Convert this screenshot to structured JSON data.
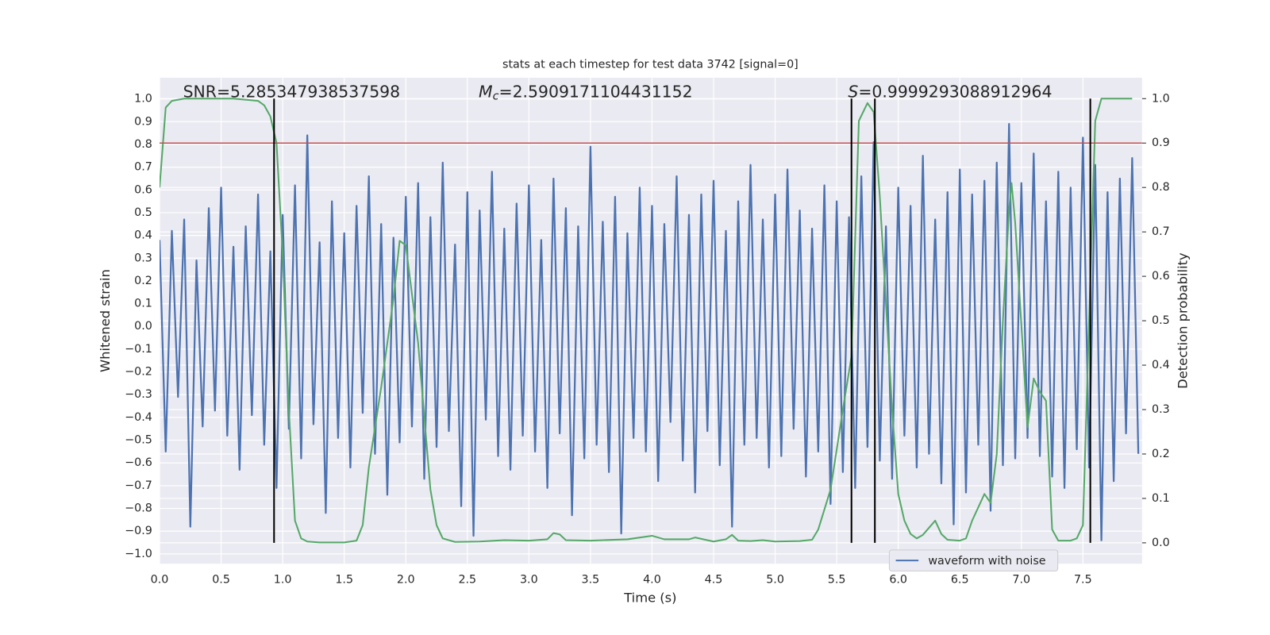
{
  "chart_data": {
    "type": "line",
    "title": "stats at each timestep for test data 3742 [signal=0]",
    "xlabel": "Time (s)",
    "ylabel": "Whitened strain",
    "y2label": "Detection probability",
    "xlim": [
      0,
      7.98
    ],
    "ylim": [
      -1.043,
      1.093
    ],
    "y2lim": [
      -0.047,
      1.047
    ],
    "xticks": [
      {
        "value": 0,
        "label": "0.0"
      },
      0.5,
      {
        "value": 1,
        "label": "1.0"
      },
      1.5,
      {
        "value": 2,
        "label": "2.0"
      },
      2.5,
      {
        "value": 3,
        "label": "3.0"
      },
      3.5,
      {
        "value": 4,
        "label": "4.0"
      },
      4.5,
      {
        "value": 5,
        "label": "5.0"
      },
      5.5,
      {
        "value": 6,
        "label": "6.0"
      },
      6.5,
      {
        "value": 7,
        "label": "7.0"
      },
      7.5
    ],
    "yticks": [
      {
        "value": 1,
        "label": "1.0"
      },
      0.9,
      0.8,
      0.7,
      0.6,
      0.5,
      0.4,
      0.3,
      0.2,
      0.1,
      {
        "value": 0,
        "label": "0.0"
      },
      {
        "value": -0.1,
        "label": "−0.1"
      },
      {
        "value": -0.2,
        "label": "−0.2"
      },
      {
        "value": -0.3,
        "label": "−0.3"
      },
      {
        "value": -0.4,
        "label": "−0.4"
      },
      {
        "value": -0.5,
        "label": "−0.5"
      },
      {
        "value": -0.6,
        "label": "−0.6"
      },
      {
        "value": -0.7,
        "label": "−0.7"
      },
      {
        "value": -0.8,
        "label": "−0.8"
      },
      {
        "value": -0.9,
        "label": "−0.9"
      },
      {
        "value": -1,
        "label": "−1.0"
      }
    ],
    "y2ticks": [
      {
        "value": 0,
        "label": "0.0"
      },
      0.1,
      0.2,
      0.3,
      0.4,
      0.5,
      0.6,
      0.7,
      0.8,
      0.9,
      {
        "value": 1,
        "label": "1.0"
      }
    ],
    "grid": true,
    "legend": "lower right",
    "annotations": [
      {
        "text": "SNR=5.285347938537598"
      },
      {
        "symbol": "M",
        "subscript": "c",
        "text": "=2.5909171104431152"
      },
      {
        "symbol": "S",
        "text": "=0.9999293088912964"
      }
    ],
    "threshold": {
      "value": 0.9,
      "axis": "y2",
      "color": "#c44e52"
    },
    "vlines": {
      "x": [
        0.93,
        5.62,
        5.81,
        7.56
      ],
      "y2range": [
        0,
        1
      ],
      "color": "#000000"
    },
    "series": [
      {
        "name": "waveform with noise",
        "color": "#4c72b0",
        "x": [
          0,
          0.05,
          0.1,
          0.15,
          0.2,
          0.25,
          0.3,
          0.35,
          0.4,
          0.45,
          0.5,
          0.55,
          0.6,
          0.65,
          0.7,
          0.75,
          0.8,
          0.85,
          0.9,
          0.95,
          1,
          1.05,
          1.1,
          1.15,
          1.2,
          1.25,
          1.3,
          1.35,
          1.4,
          1.45,
          1.5,
          1.55,
          1.6,
          1.65,
          1.7,
          1.75,
          1.8,
          1.85,
          1.9,
          1.95,
          2,
          2.05,
          2.1,
          2.15,
          2.2,
          2.25,
          2.3,
          2.35,
          2.4,
          2.45,
          2.5,
          2.55,
          2.6,
          2.65,
          2.7,
          2.75,
          2.8,
          2.85,
          2.9,
          2.95,
          3,
          3.05,
          3.1,
          3.15,
          3.2,
          3.25,
          3.3,
          3.35,
          3.4,
          3.45,
          3.5,
          3.55,
          3.6,
          3.65,
          3.7,
          3.75,
          3.8,
          3.85,
          3.9,
          3.95,
          4,
          4.05,
          4.1,
          4.15,
          4.2,
          4.25,
          4.3,
          4.35,
          4.4,
          4.45,
          4.5,
          4.55,
          4.6,
          4.65,
          4.7,
          4.75,
          4.8,
          4.85,
          4.9,
          4.95,
          5,
          5.05,
          5.1,
          5.15,
          5.2,
          5.25,
          5.3,
          5.35,
          5.4,
          5.45,
          5.5,
          5.55,
          5.6,
          5.65,
          5.7,
          5.75,
          5.8,
          5.85,
          5.9,
          5.95,
          6,
          6.05,
          6.1,
          6.15,
          6.2,
          6.25,
          6.3,
          6.35,
          6.4,
          6.45,
          6.5,
          6.55,
          6.6,
          6.65,
          6.7,
          6.75,
          6.8,
          6.85,
          6.9,
          6.95,
          7,
          7.05,
          7.1,
          7.15,
          7.2,
          7.25,
          7.3,
          7.35,
          7.4,
          7.45,
          7.5,
          7.55,
          7.6,
          7.65,
          7.7,
          7.75,
          7.8,
          7.85,
          7.9,
          7.95
        ],
        "values": [
          0.38,
          -0.55,
          0.42,
          -0.31,
          0.47,
          -0.88,
          0.29,
          -0.44,
          0.52,
          -0.37,
          0.61,
          -0.48,
          0.35,
          -0.63,
          0.44,
          -0.39,
          0.58,
          -0.52,
          0.33,
          -0.71,
          0.49,
          -0.45,
          0.62,
          -0.58,
          0.84,
          -0.43,
          0.37,
          -0.82,
          0.55,
          -0.49,
          0.41,
          -0.62,
          0.53,
          -0.38,
          0.66,
          -0.56,
          0.45,
          -0.74,
          0.39,
          -0.51,
          0.57,
          -0.44,
          0.63,
          -0.67,
          0.48,
          -0.53,
          0.72,
          -0.46,
          0.36,
          -0.79,
          0.59,
          -0.92,
          0.51,
          -0.41,
          0.68,
          -0.57,
          0.43,
          -0.63,
          0.54,
          -0.48,
          0.62,
          -0.55,
          0.38,
          -0.71,
          0.65,
          -0.47,
          0.52,
          -0.83,
          0.44,
          -0.58,
          0.79,
          -0.52,
          0.46,
          -0.64,
          0.57,
          -0.91,
          0.41,
          -0.49,
          0.61,
          -0.55,
          0.53,
          -0.68,
          0.45,
          -0.42,
          0.66,
          -0.59,
          0.49,
          -0.73,
          0.58,
          -0.46,
          0.64,
          -0.61,
          0.42,
          -0.88,
          0.55,
          -0.52,
          0.71,
          -0.49,
          0.47,
          -0.62,
          0.58,
          -0.57,
          0.69,
          -0.45,
          0.51,
          -0.66,
          0.43,
          -0.55,
          0.62,
          -0.78,
          0.55,
          -0.64,
          0.48,
          -0.71,
          0.66,
          -0.53,
          0.81,
          -0.59,
          0.44,
          -0.67,
          0.61,
          -0.48,
          0.53,
          -0.62,
          0.75,
          -0.56,
          0.47,
          -0.69,
          0.59,
          -0.87,
          0.69,
          -0.73,
          0.58,
          -0.52,
          0.64,
          -0.81,
          0.72,
          -0.61,
          0.89,
          -0.58,
          0.63,
          -0.49,
          0.76,
          -0.57,
          0.55,
          -0.66,
          0.68,
          -0.71,
          0.61,
          -0.54,
          0.83,
          -0.62,
          0.71,
          -0.94,
          0.59,
          -0.68,
          0.65,
          -0.47,
          0.74,
          -0.56
        ]
      },
      {
        "color": "#55a868",
        "axis": "y2",
        "x": [
          0,
          0.05,
          0.1,
          0.2,
          0.4,
          0.6,
          0.8,
          0.85,
          0.9,
          0.95,
          1,
          1.05,
          1.1,
          1.15,
          1.2,
          1.3,
          1.5,
          1.6,
          1.65,
          1.7,
          1.8,
          1.9,
          1.95,
          2,
          2.1,
          2.2,
          2.25,
          2.3,
          2.4,
          2.6,
          2.8,
          3,
          3.15,
          3.2,
          3.25,
          3.3,
          3.5,
          3.8,
          4,
          4.1,
          4.3,
          4.35,
          4.5,
          4.6,
          4.65,
          4.7,
          4.8,
          4.9,
          5,
          5.2,
          5.3,
          5.35,
          5.45,
          5.55,
          5.62,
          5.68,
          5.75,
          5.8,
          5.85,
          5.95,
          6,
          6.05,
          6.1,
          6.15,
          6.2,
          6.3,
          6.35,
          6.4,
          6.5,
          6.55,
          6.6,
          6.7,
          6.75,
          6.8,
          6.85,
          6.9,
          6.92,
          6.95,
          7.05,
          7.1,
          7.15,
          7.2,
          7.25,
          7.3,
          7.4,
          7.45,
          7.5,
          7.55,
          7.6,
          7.65,
          7.9
        ],
        "values": [
          0.8,
          0.98,
          0.995,
          1,
          1,
          1,
          0.995,
          0.985,
          0.96,
          0.9,
          0.65,
          0.3,
          0.05,
          0.01,
          0.003,
          0.001,
          0.001,
          0.005,
          0.04,
          0.17,
          0.35,
          0.55,
          0.68,
          0.67,
          0.45,
          0.12,
          0.04,
          0.01,
          0.002,
          0.003,
          0.006,
          0.005,
          0.008,
          0.022,
          0.019,
          0.006,
          0.005,
          0.008,
          0.016,
          0.008,
          0.008,
          0.012,
          0.003,
          0.008,
          0.018,
          0.005,
          0.004,
          0.006,
          0.003,
          0.004,
          0.007,
          0.03,
          0.12,
          0.3,
          0.42,
          0.95,
          0.99,
          0.97,
          0.78,
          0.3,
          0.11,
          0.05,
          0.02,
          0.01,
          0.018,
          0.05,
          0.02,
          0.007,
          0.005,
          0.01,
          0.05,
          0.11,
          0.09,
          0.2,
          0.5,
          0.75,
          0.81,
          0.72,
          0.26,
          0.37,
          0.34,
          0.32,
          0.03,
          0.005,
          0.005,
          0.01,
          0.04,
          0.5,
          0.95,
          1,
          1
        ]
      }
    ]
  }
}
